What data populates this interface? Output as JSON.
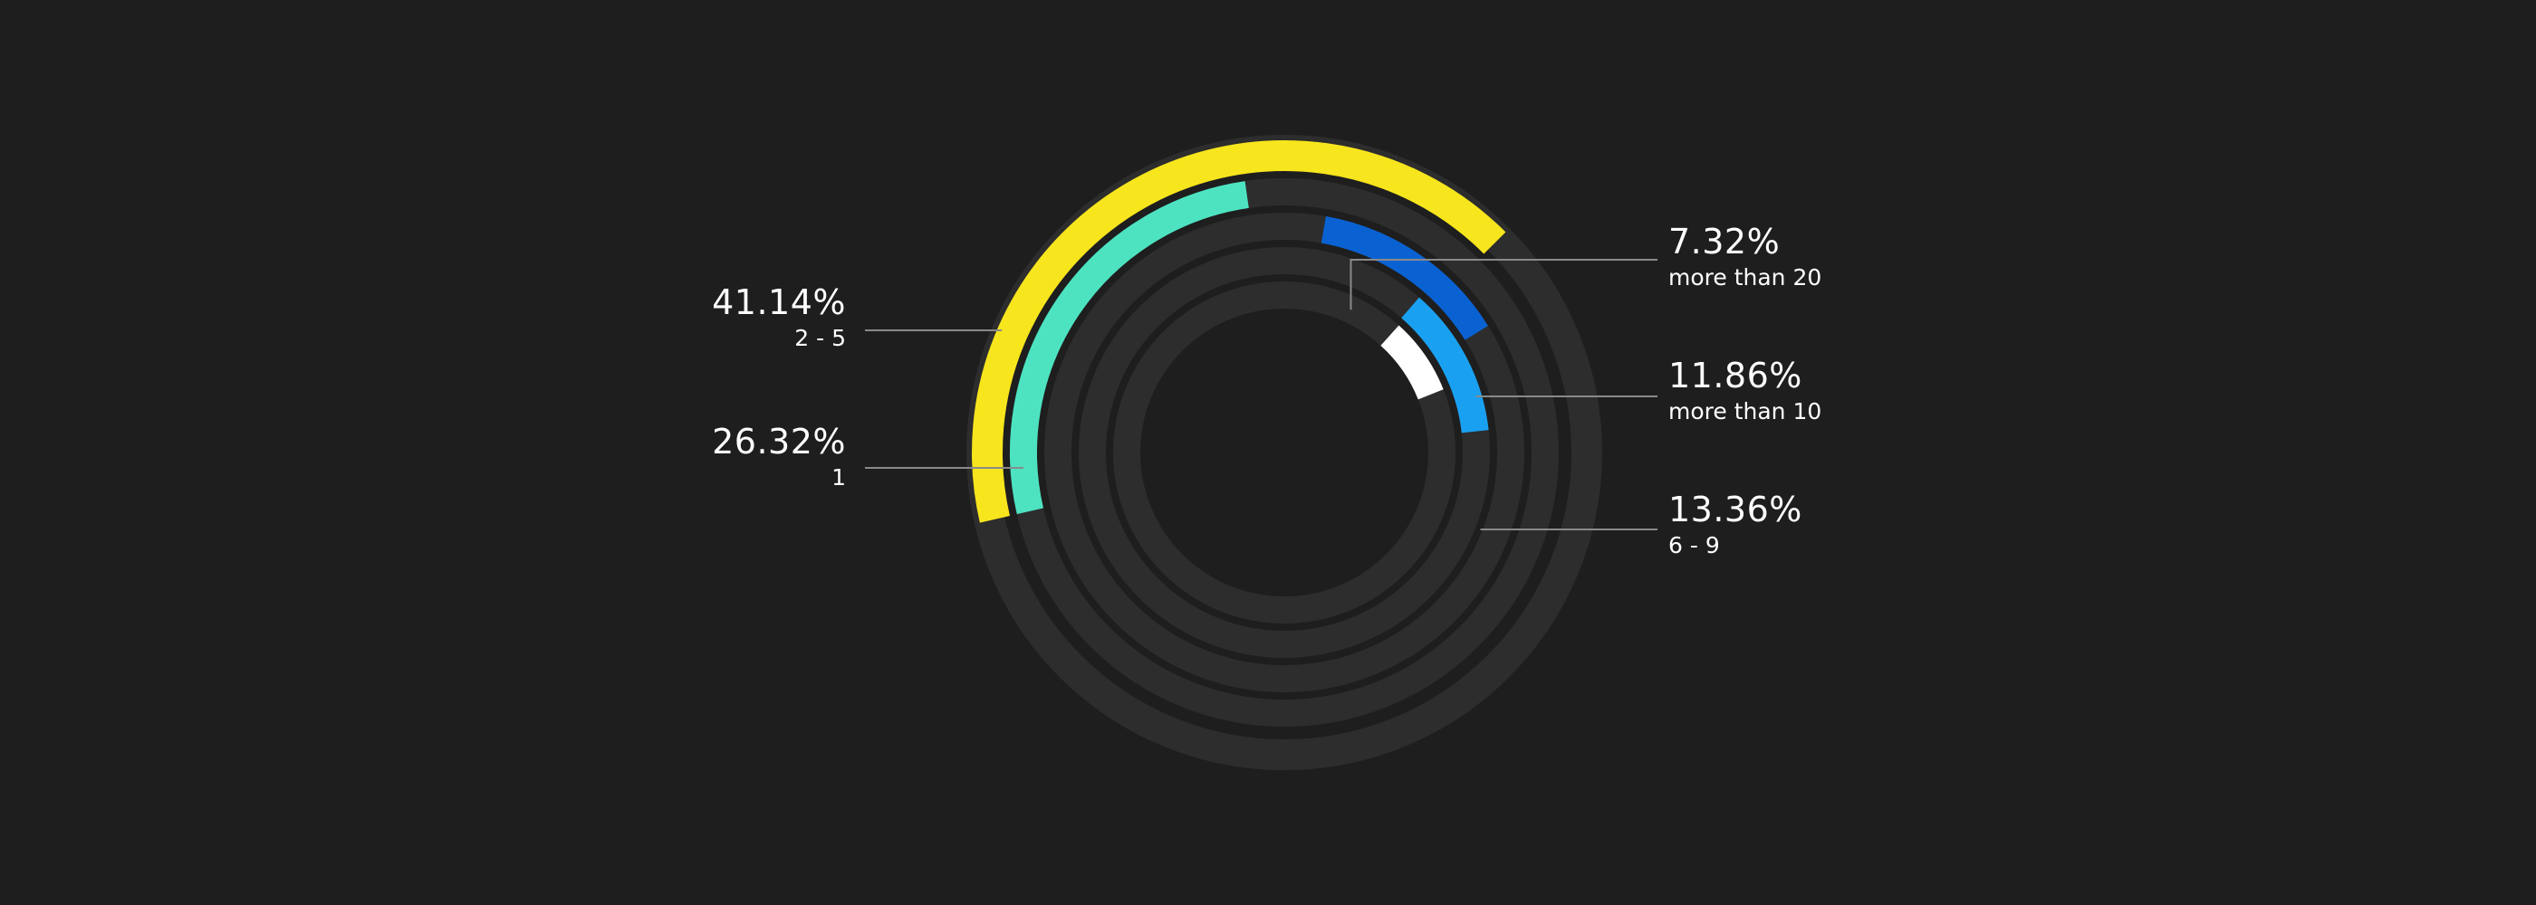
{
  "chart_data": {
    "type": "radial-bar",
    "series": [
      {
        "label": "2 - 5",
        "value": 41.14,
        "percent_text": "41.14%",
        "color": "#f7e51d"
      },
      {
        "label": "1",
        "value": 26.32,
        "percent_text": "26.32%",
        "color": "#4de3c1"
      },
      {
        "label": "6 - 9",
        "value": 13.36,
        "percent_text": "13.36%",
        "color": "#0a62d2"
      },
      {
        "label": "more than 10",
        "value": 11.86,
        "percent_text": "11.86%",
        "color": "#1aa0f0"
      },
      {
        "label": "more than 20",
        "value": 7.32,
        "percent_text": "7.32%",
        "color": "#ffffff"
      }
    ],
    "track_color": "#2d2d2d",
    "leader_color": "#8a8a8a",
    "background": "#1e1e1e"
  }
}
